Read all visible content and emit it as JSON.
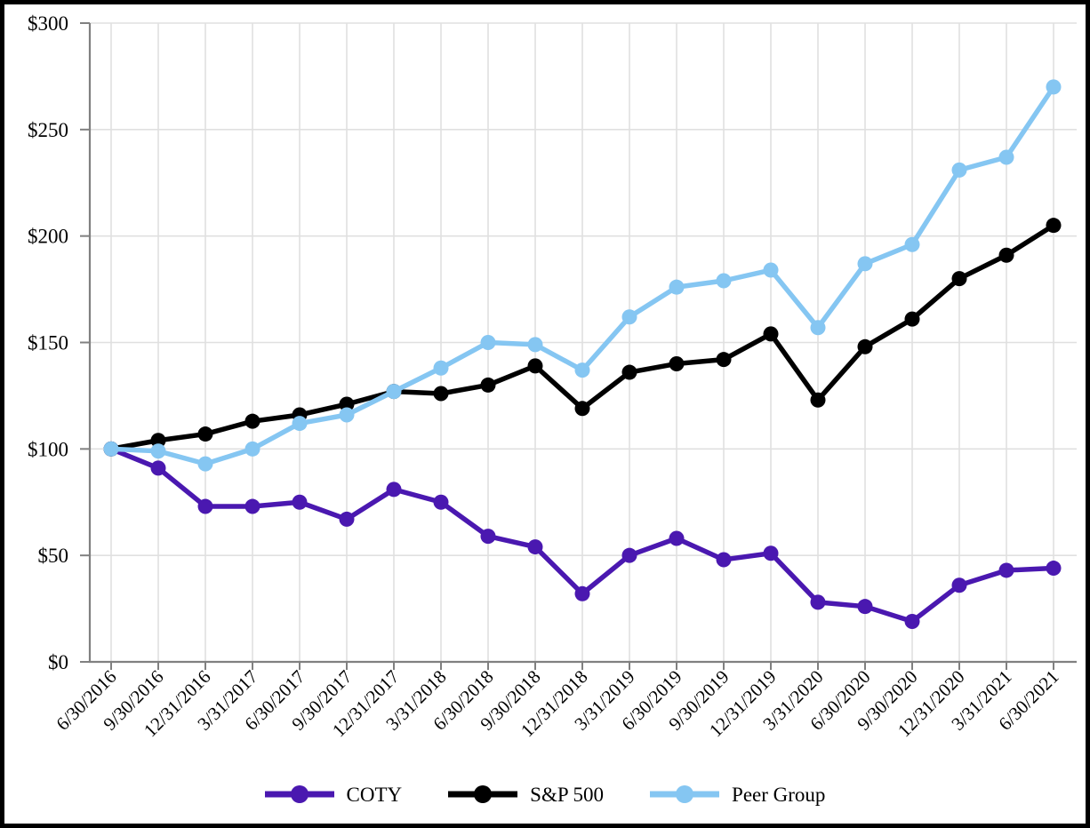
{
  "chart_data": {
    "type": "line",
    "title": "",
    "xlabel": "",
    "ylabel": "",
    "x_categories": [
      "6/30/2016",
      "9/30/2016",
      "12/31/2016",
      "3/31/2017",
      "6/30/2017",
      "9/30/2017",
      "12/31/2017",
      "3/31/2018",
      "6/30/2018",
      "9/30/2018",
      "12/31/2018",
      "3/31/2019",
      "6/30/2019",
      "9/30/2019",
      "12/31/2019",
      "3/31/2020",
      "6/30/2020",
      "9/30/2020",
      "12/31/2020",
      "3/31/2021",
      "6/30/2021"
    ],
    "series": [
      {
        "name": "COTY",
        "color": "#4A18B0",
        "values": [
          100,
          91,
          73,
          73,
          75,
          67,
          81,
          75,
          59,
          54,
          32,
          50,
          58,
          48,
          51,
          28,
          26,
          19,
          36,
          43,
          44
        ]
      },
      {
        "name": "S&P 500",
        "color": "#000000",
        "values": [
          100,
          104,
          107,
          113,
          116,
          121,
          127,
          126,
          130,
          139,
          119,
          136,
          140,
          142,
          154,
          123,
          148,
          161,
          180,
          191,
          205
        ]
      },
      {
        "name": "Peer Group",
        "color": "#85C6F2",
        "values": [
          100,
          99,
          93,
          100,
          112,
          116,
          127,
          138,
          150,
          149,
          137,
          162,
          176,
          179,
          184,
          157,
          187,
          196,
          231,
          237,
          270
        ]
      }
    ],
    "y_ticks": [
      "$0",
      "$50",
      "$100",
      "$150",
      "$200",
      "$250",
      "$300"
    ],
    "y_tick_step": 50,
    "ylim": [
      0,
      300
    ],
    "grid": true,
    "legend_position": "bottom",
    "grid_color": "#E0E0E0",
    "axis_color": "#808080",
    "text_color": "#000000",
    "frame_border_color": "#000000"
  }
}
